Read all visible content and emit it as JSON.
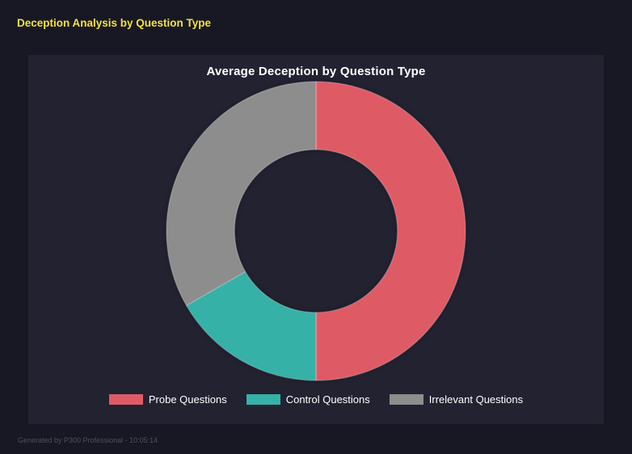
{
  "header": {
    "title": "Deception Analysis by Question Type"
  },
  "chart_data": {
    "type": "pie",
    "donut": true,
    "title": "Average Deception by Question Type",
    "categories": [
      "Probe Questions",
      "Control Questions",
      "Irrelevant Questions"
    ],
    "values": [
      50.0,
      16.7,
      33.3
    ],
    "values_unit": "percent_of_donut",
    "colors": [
      "#de5b66",
      "#35b1a8",
      "#8d8d8d"
    ],
    "start_angle_deg": 0,
    "direction": "clockwise",
    "inner_radius_ratio": 0.545,
    "legend_position": "bottom",
    "background": "#232231"
  },
  "footer": {
    "text": "Generated by P300 Professional - 10:05:14"
  },
  "theme": {
    "page_bg": "#181824",
    "panel_bg": "#232231",
    "title_accent": "#f2e13a",
    "text_color": "#ffffff",
    "footer_color": "#4f4f5a"
  }
}
